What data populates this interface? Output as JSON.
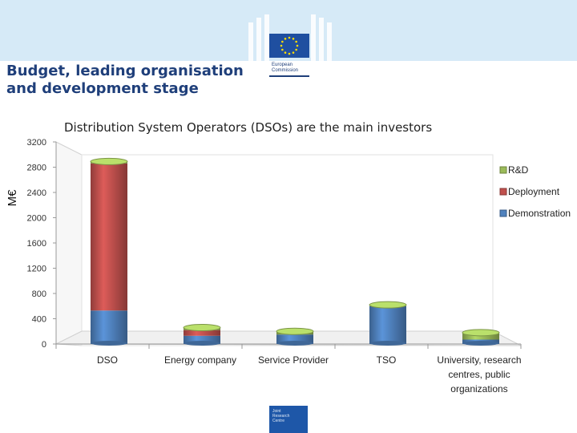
{
  "header": {
    "title_line1": "Budget, leading organisation",
    "title_line2": "and development stage",
    "logo_text_line1": "European",
    "logo_text_line2": "Commission"
  },
  "footer": {
    "logo_line1": "Joint",
    "logo_line2": "Research",
    "logo_line3": "Centre"
  },
  "chart_data": {
    "type": "bar",
    "stacked": true,
    "title": "Distribution System Operators (DSOs) are the main investors",
    "ylabel": "M€",
    "ylim": [
      0,
      3200
    ],
    "yticks": [
      "0",
      "400",
      "800",
      "1200",
      "1600",
      "2000",
      "2400",
      "2800",
      "3200"
    ],
    "categories": [
      [
        "DSO"
      ],
      [
        "Energy company"
      ],
      [
        "Service Provider"
      ],
      [
        "TSO"
      ],
      [
        "University, research",
        "centres, public",
        "organizations"
      ]
    ],
    "series": [
      {
        "name": "Demonstration",
        "color": "#4f81bd",
        "values": [
          530,
          130,
          150,
          600,
          70
        ]
      },
      {
        "name": "Deployment",
        "color": "#c0504d",
        "values": [
          2330,
          90,
          0,
          0,
          0
        ]
      },
      {
        "name": "R&D",
        "color": "#9bbb59",
        "values": [
          30,
          40,
          50,
          20,
          110
        ]
      }
    ],
    "legend_position": "right",
    "legend_order": [
      "R&D",
      "Deployment",
      "Demonstration"
    ],
    "grid": false
  }
}
